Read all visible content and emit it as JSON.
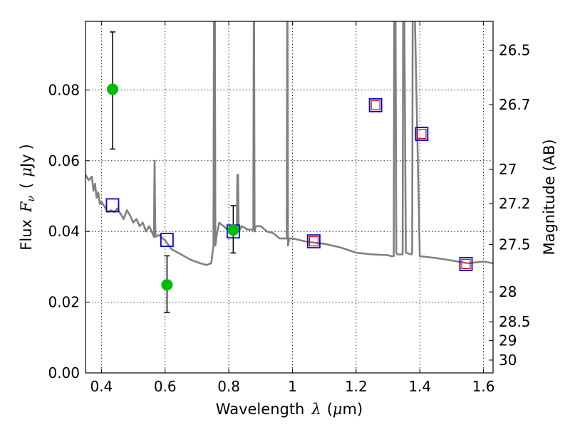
{
  "chart_data": {
    "type": "scatter",
    "title": "",
    "xlabel": "Wavelength",
    "xlabel_symbol": "λ",
    "xlabel_unit_prefix": "(",
    "xlabel_unit_mu": "μ",
    "xlabel_unit_suffix": "m)",
    "ylabel": "Flux",
    "ylabel_symbol": "F",
    "ylabel_symbol_sub": "ν",
    "ylabel_unit_open": "(",
    "ylabel_unit_mu": "μ",
    "ylabel_unit": "Jy",
    "ylabel_unit_close": ")",
    "y2label": "Magnitude (AB)",
    "xlim": [
      0.35,
      1.63
    ],
    "ylim": [
      0.0,
      0.0994
    ],
    "grid": true,
    "x_ticks": [
      "0.4",
      "0.6",
      "0.8",
      "1",
      "1.2",
      "1.4",
      "1.6"
    ],
    "y_ticks": [
      "0.00",
      "0.02",
      "0.04",
      "0.06",
      "0.08"
    ],
    "y2_ticks": [
      "26.5",
      "26.7",
      "27",
      "27.2",
      "27.5",
      "28",
      "28.5",
      "29",
      "30"
    ],
    "colors": {
      "model": "#808080",
      "observed": "#00bb00",
      "model_box": "#0000dd",
      "model_box_inner": "#dd0000",
      "errorbar": "#000000"
    },
    "model_spectrum": {
      "x": [
        0.35,
        0.36,
        0.37,
        0.375,
        0.38,
        0.385,
        0.39,
        0.395,
        0.4,
        0.41,
        0.42,
        0.43,
        0.44,
        0.45,
        0.46,
        0.47,
        0.48,
        0.49,
        0.5,
        0.51,
        0.52,
        0.53,
        0.54,
        0.55,
        0.565,
        0.566,
        0.567,
        0.568,
        0.569,
        0.57,
        0.58,
        0.6,
        0.62,
        0.65,
        0.68,
        0.71,
        0.73,
        0.745,
        0.752,
        0.754,
        0.756,
        0.758,
        0.762,
        0.77,
        0.79,
        0.8,
        0.81,
        0.82,
        0.825,
        0.827,
        0.829,
        0.831,
        0.835,
        0.84,
        0.86,
        0.877,
        0.879,
        0.881,
        0.885,
        0.9,
        0.92,
        0.94,
        0.96,
        0.982,
        0.984,
        0.986,
        0.99,
        1.0,
        1.05,
        1.1,
        1.15,
        1.2,
        1.25,
        1.3,
        1.31,
        1.318,
        1.32,
        1.323,
        1.326,
        1.33,
        1.344,
        1.346,
        1.348,
        1.35,
        1.356,
        1.374,
        1.376,
        1.378,
        1.38,
        1.4,
        1.45,
        1.5,
        1.55,
        1.6,
        1.63
      ],
      "y": [
        0.056,
        0.0545,
        0.0555,
        0.0515,
        0.0535,
        0.0495,
        0.051,
        0.0478,
        0.0485,
        0.047,
        0.0455,
        0.046,
        0.0455,
        0.0465,
        0.045,
        0.0435,
        0.046,
        0.0445,
        0.0425,
        0.0435,
        0.0415,
        0.0425,
        0.04,
        0.0415,
        0.0385,
        0.05,
        0.06,
        0.05,
        0.042,
        0.0385,
        0.039,
        0.0375,
        0.035,
        0.0335,
        0.032,
        0.031,
        0.0305,
        0.031,
        0.036,
        0.12,
        0.12,
        0.036,
        0.039,
        0.0425,
        0.041,
        0.04,
        0.0395,
        0.0405,
        0.041,
        0.056,
        0.056,
        0.042,
        0.0405,
        0.0415,
        0.0405,
        0.0405,
        0.12,
        0.04,
        0.0415,
        0.0415,
        0.04,
        0.0395,
        0.038,
        0.038,
        0.12,
        0.036,
        0.038,
        0.038,
        0.037,
        0.0365,
        0.0355,
        0.034,
        0.0335,
        0.0333,
        0.033,
        0.033,
        0.12,
        0.12,
        0.034,
        0.0335,
        0.0335,
        0.0335,
        0.12,
        0.12,
        0.034,
        0.0335,
        0.034,
        0.12,
        0.12,
        0.033,
        0.0325,
        0.0318,
        0.031,
        0.0315,
        0.031
      ]
    },
    "observed_points": [
      {
        "x": 0.435,
        "y": 0.0802,
        "err_low": 0.0633,
        "err_high": 0.0964
      },
      {
        "x": 0.606,
        "y": 0.0249,
        "err_low": 0.0171,
        "err_high": 0.0331
      },
      {
        "x": 0.814,
        "y": 0.0404,
        "err_low": 0.0339,
        "err_high": 0.0473
      }
    ],
    "model_photometry": [
      {
        "x": 0.435,
        "y": 0.0474
      },
      {
        "x": 0.606,
        "y": 0.0376
      },
      {
        "x": 0.814,
        "y": 0.04
      },
      {
        "x": 1.067,
        "y": 0.0372
      },
      {
        "x": 1.261,
        "y": 0.0757
      },
      {
        "x": 1.406,
        "y": 0.0676
      },
      {
        "x": 1.545,
        "y": 0.0308
      }
    ],
    "model_photometry_inner": [
      {
        "x": 1.067,
        "y": 0.0372
      },
      {
        "x": 1.261,
        "y": 0.0757
      },
      {
        "x": 1.406,
        "y": 0.0676
      },
      {
        "x": 1.545,
        "y": 0.0308
      }
    ]
  }
}
